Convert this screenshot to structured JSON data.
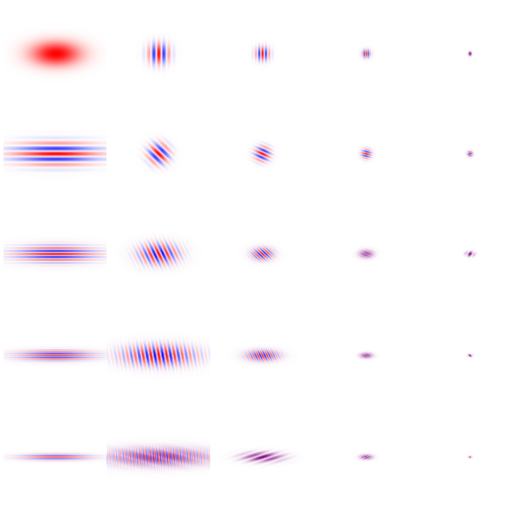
{
  "figure": {
    "type": "gabor-filter-bank-grid",
    "rows": 5,
    "columns": 5,
    "colors": {
      "positive": "#ff0000",
      "negative": "#0000ff",
      "background": "#ffffff"
    },
    "cells": [
      [
        {
          "kind": "gaussian",
          "cycles": 0,
          "angle_deg": 0,
          "elong": 1.0,
          "scale": 1.0
        },
        {
          "kind": "gabor",
          "cycles": 3,
          "angle_deg": 0,
          "elong": 1.0,
          "scale": 0.75
        },
        {
          "kind": "gabor",
          "cycles": 3,
          "angle_deg": 0,
          "elong": 1.0,
          "scale": 0.5
        },
        {
          "kind": "gabor",
          "cycles": 3,
          "angle_deg": 0,
          "elong": 1.0,
          "scale": 0.3
        },
        {
          "kind": "gabor",
          "cycles": 3,
          "angle_deg": 0,
          "elong": 1.0,
          "scale": 0.15
        }
      ],
      [
        {
          "kind": "gabor",
          "cycles": 3,
          "angle_deg": 90,
          "elong": 1.0,
          "scale": 1.0
        },
        {
          "kind": "gabor",
          "cycles": 3,
          "angle_deg": 45,
          "elong": 1.0,
          "scale": 0.75
        },
        {
          "kind": "gabor",
          "cycles": 3,
          "angle_deg": 25,
          "elong": 1.0,
          "scale": 0.55
        },
        {
          "kind": "gabor",
          "cycles": 3,
          "angle_deg": 15,
          "elong": 1.0,
          "scale": 0.35
        },
        {
          "kind": "gabor",
          "cycles": 3,
          "angle_deg": 5,
          "elong": 1.0,
          "scale": 0.2
        }
      ],
      [
        {
          "kind": "gabor",
          "cycles": 4,
          "angle_deg": 90,
          "elong": 0.55,
          "scale": 1.0
        },
        {
          "kind": "gabor",
          "cycles": 4,
          "angle_deg": 65,
          "elong": 0.55,
          "scale": 0.75
        },
        {
          "kind": "gabor",
          "cycles": 4,
          "angle_deg": 45,
          "elong": 0.6,
          "scale": 0.45
        },
        {
          "kind": "gabor",
          "cycles": 4,
          "angle_deg": 25,
          "elong": 0.6,
          "scale": 0.3
        },
        {
          "kind": "gabor",
          "cycles": 4,
          "angle_deg": 10,
          "elong": 0.6,
          "scale": 0.18
        }
      ],
      [
        {
          "kind": "gabor",
          "cycles": 4,
          "angle_deg": 90,
          "elong": 0.3,
          "scale": 1.0
        },
        {
          "kind": "gabor",
          "cycles": 4,
          "angle_deg": 80,
          "elong": 0.3,
          "scale": 0.75
        },
        {
          "kind": "gabor",
          "cycles": 4,
          "angle_deg": 65,
          "elong": 0.35,
          "scale": 0.4
        },
        {
          "kind": "gabor",
          "cycles": 4,
          "angle_deg": 45,
          "elong": 0.45,
          "scale": 0.2
        },
        {
          "kind": "gabor",
          "cycles": 4,
          "angle_deg": 45,
          "elong": 0.6,
          "scale": 0.1
        }
      ],
      [
        {
          "kind": "gabor",
          "cycles": 8,
          "angle_deg": 90,
          "elong": 0.15,
          "scale": 1.0
        },
        {
          "kind": "gabor",
          "cycles": 8,
          "angle_deg": 85,
          "elong": 0.18,
          "scale": 0.65
        },
        {
          "kind": "gabor",
          "cycles": 8,
          "angle_deg": 80,
          "elong": 0.25,
          "scale": 0.35
        },
        {
          "kind": "gabor",
          "cycles": 8,
          "angle_deg": 70,
          "elong": 0.4,
          "scale": 0.18
        },
        {
          "kind": "gabor",
          "cycles": 8,
          "angle_deg": 60,
          "elong": 0.7,
          "scale": 0.08
        }
      ]
    ]
  }
}
